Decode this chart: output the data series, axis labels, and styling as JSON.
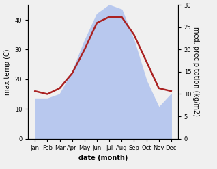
{
  "months": [
    "Jan",
    "Feb",
    "Mar",
    "Apr",
    "May",
    "Jun",
    "Jul",
    "Aug",
    "Sep",
    "Oct",
    "Nov",
    "Dec"
  ],
  "temp": [
    16,
    15,
    17,
    22,
    30,
    39,
    41,
    41,
    35,
    26,
    17,
    16
  ],
  "precip": [
    9,
    9,
    10,
    15,
    22,
    28,
    30,
    29,
    22,
    13,
    7,
    10
  ],
  "temp_color": "#aa2222",
  "precip_fill_color": "#b8c8ee",
  "bg_color": "#f0f0f0",
  "plot_bg_color": "#f0f0f0",
  "xlabel": "date (month)",
  "ylabel_left": "max temp (C)",
  "ylabel_right": "med. precipitation (kg/m2)",
  "ylim_left": [
    0,
    45
  ],
  "ylim_right": [
    0,
    30
  ],
  "yticks_left": [
    0,
    10,
    20,
    30,
    40
  ],
  "yticks_right": [
    0,
    5,
    10,
    15,
    20,
    25,
    30
  ],
  "fontsize_ticks": 6,
  "fontsize_labels": 7,
  "fontsize_xlabel": 7,
  "linewidth": 1.8
}
